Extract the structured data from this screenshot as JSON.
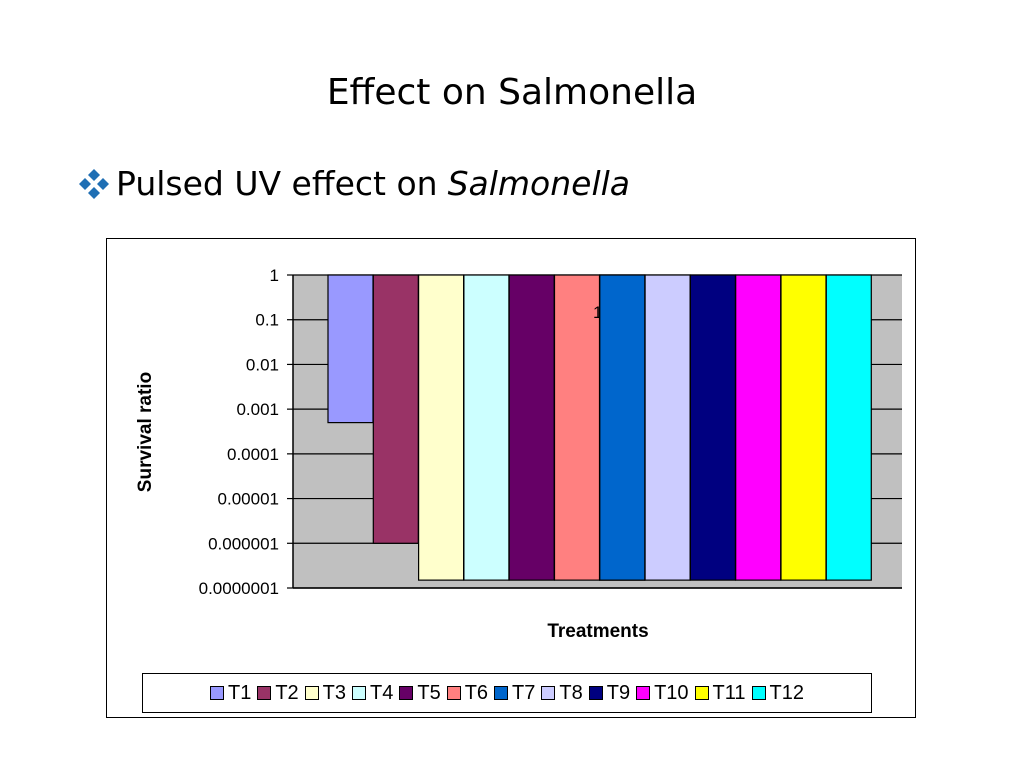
{
  "slide": {
    "title": "Effect on Salmonella",
    "bullet_text": "Pulsed UV effect on",
    "bullet_italic": "Salmonella",
    "bullet_icon": "diamond-cluster-icon",
    "bullet_color": "#1f6fb4"
  },
  "chart_data": {
    "type": "bar",
    "title": "",
    "xlabel": "Treatments",
    "ylabel": "Survival ratio",
    "y_scale": "log",
    "ylim": [
      1e-07,
      1
    ],
    "yticks": [
      "1",
      "0.1",
      "0.01",
      "0.001",
      "0.0001",
      "0.00001",
      "0.000001",
      "0.0000001"
    ],
    "categories": [
      "T1",
      "T2",
      "T3",
      "T4",
      "T5",
      "T6",
      "T7",
      "T8",
      "T9",
      "T10",
      "T11",
      "T12"
    ],
    "values": [
      0.0005,
      1e-06,
      1.5e-07,
      1.5e-07,
      1.5e-07,
      1.5e-07,
      1.5e-07,
      1.5e-07,
      1.5e-07,
      1.5e-07,
      1.5e-07,
      1.5e-07
    ],
    "colors": [
      "#9999ff",
      "#993366",
      "#ffffcc",
      "#ccffff",
      "#660066",
      "#ff8080",
      "#0066cc",
      "#ccccff",
      "#000080",
      "#ff00ff",
      "#ffff00",
      "#00ffff"
    ],
    "plot_background": "#c0c0c0",
    "grid": true,
    "legend_position": "bottom",
    "annotation": "1"
  }
}
